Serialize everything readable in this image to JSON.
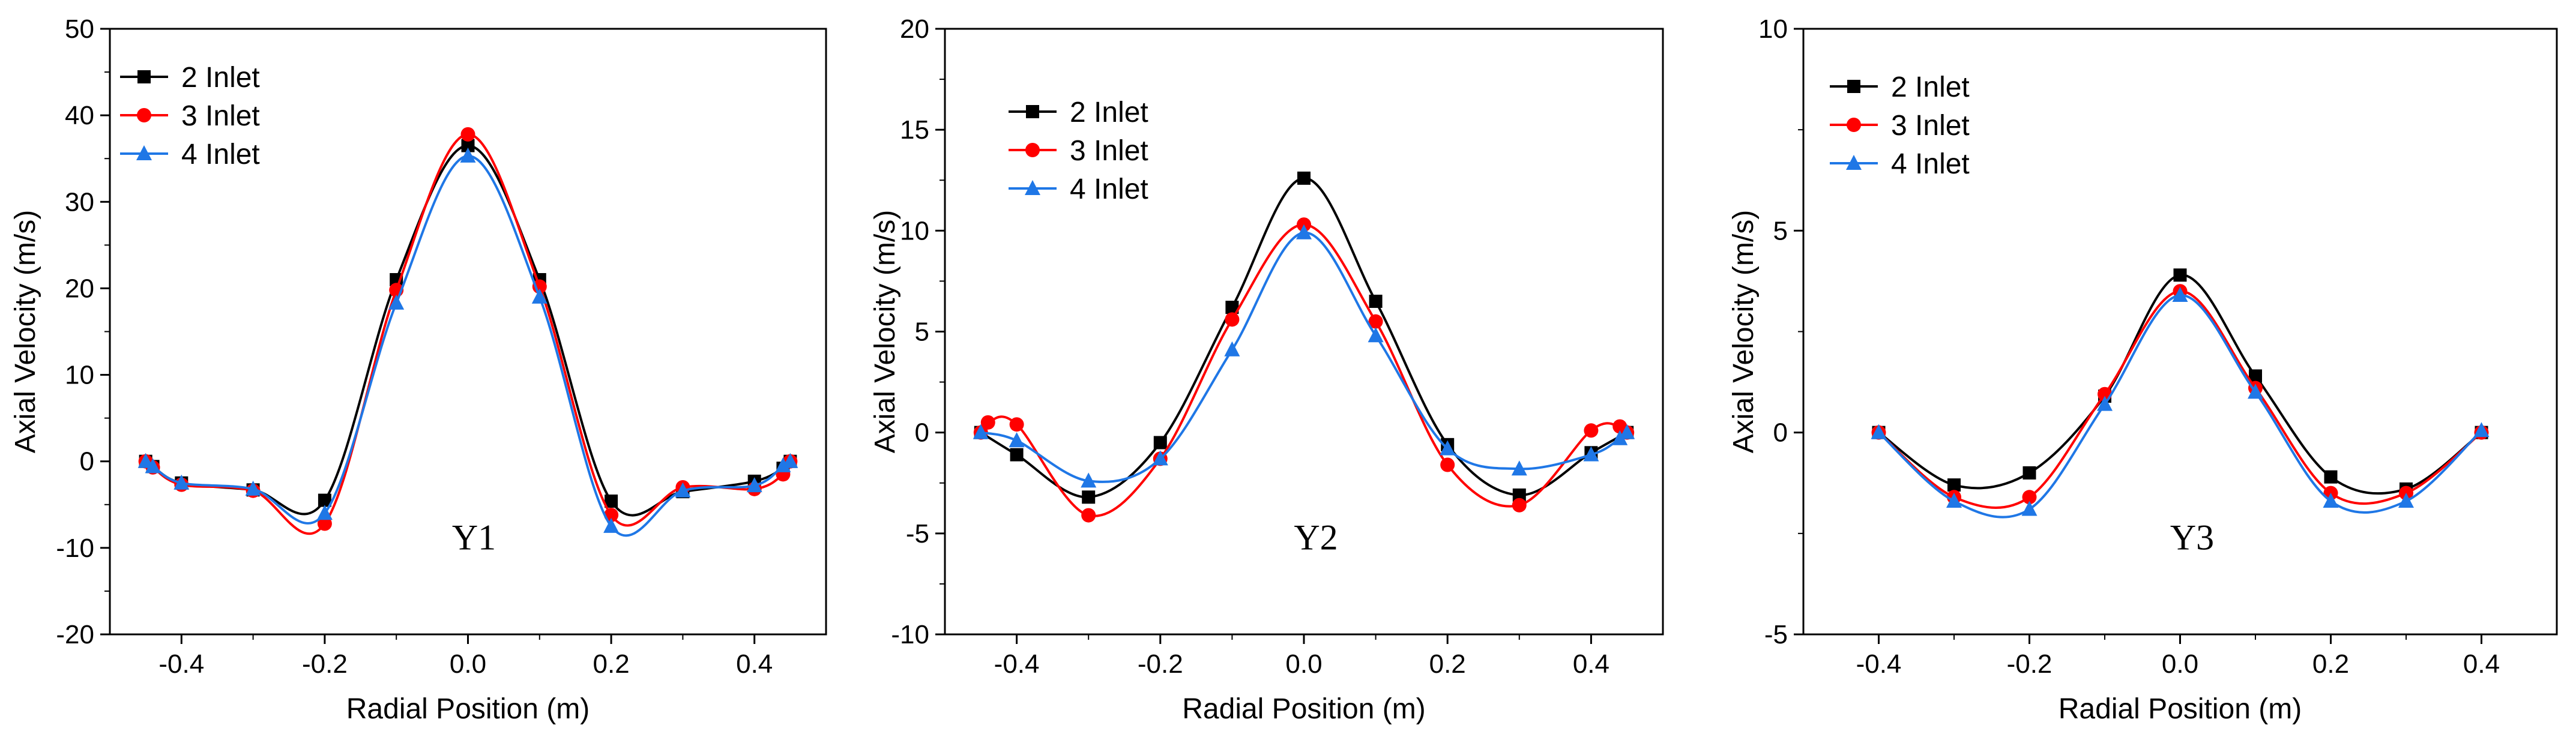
{
  "colors": {
    "2 Inlet": "#000000",
    "3 Inlet": "#ff0000",
    "4 Inlet": "#1f77e6"
  },
  "chart_data": [
    {
      "type": "line",
      "panel_label": "Y1",
      "xlabel": "Radial Position (m)",
      "ylabel": "Axial Velocity (m/s)",
      "xlim": [
        -0.5,
        0.5
      ],
      "ylim": [
        -20,
        50
      ],
      "xticks": [
        -0.4,
        -0.2,
        0.0,
        0.2,
        0.4
      ],
      "xtick_labels": [
        "-0.4",
        "-0.2",
        "0.0",
        "0.2",
        "0.4"
      ],
      "yticks": [
        -20,
        -10,
        0,
        10,
        20,
        30,
        40,
        50
      ],
      "ytick_labels": [
        "-20",
        "-10",
        "0",
        "10",
        "20",
        "30",
        "40",
        "50"
      ],
      "legend": "top-left",
      "series": [
        {
          "name": "2 Inlet",
          "marker": "square",
          "x": [
            -0.45,
            -0.44,
            -0.4,
            -0.3,
            -0.2,
            -0.1,
            0.0,
            0.1,
            0.2,
            0.3,
            0.4,
            0.44,
            0.45
          ],
          "y": [
            0.0,
            -0.6,
            -2.5,
            -3.3,
            -4.5,
            21.0,
            36.5,
            21.0,
            -4.6,
            -3.5,
            -2.3,
            -0.8,
            0.0
          ]
        },
        {
          "name": "3 Inlet",
          "marker": "circle",
          "x": [
            -0.45,
            -0.44,
            -0.4,
            -0.3,
            -0.2,
            -0.1,
            0.0,
            0.1,
            0.2,
            0.3,
            0.4,
            0.44,
            0.45
          ],
          "y": [
            0.0,
            -0.7,
            -2.7,
            -3.4,
            -7.2,
            19.8,
            37.8,
            20.2,
            -6.2,
            -3.0,
            -3.2,
            -1.5,
            0.0
          ]
        },
        {
          "name": "4 Inlet",
          "marker": "triangle",
          "x": [
            -0.45,
            -0.44,
            -0.4,
            -0.3,
            -0.2,
            -0.1,
            0.0,
            0.1,
            0.2,
            0.3,
            0.4,
            0.44,
            0.45
          ],
          "y": [
            0.0,
            -0.6,
            -2.5,
            -3.2,
            -6.0,
            18.3,
            35.3,
            19.0,
            -7.5,
            -3.4,
            -2.8,
            -0.5,
            0.0
          ]
        }
      ]
    },
    {
      "type": "line",
      "panel_label": "Y2",
      "xlabel": "Radial Position (m)",
      "ylabel": "Axial Velocity (m/s)",
      "xlim": [
        -0.5,
        0.5
      ],
      "ylim": [
        -10,
        20
      ],
      "xticks": [
        -0.4,
        -0.2,
        0.0,
        0.2,
        0.4
      ],
      "xtick_labels": [
        "-0.4",
        "-0.2",
        "0.0",
        "0.2",
        "0.4"
      ],
      "yticks": [
        -10,
        -5,
        0,
        5,
        10,
        15,
        20
      ],
      "ytick_labels": [
        "-10",
        "-5",
        "0",
        "5",
        "10",
        "15",
        "20"
      ],
      "legend": "top-left",
      "series": [
        {
          "name": "2 Inlet",
          "marker": "square",
          "x": [
            -0.45,
            -0.4,
            -0.3,
            -0.2,
            -0.1,
            0.0,
            0.1,
            0.2,
            0.3,
            0.4,
            0.45
          ],
          "y": [
            0.0,
            -1.1,
            -3.2,
            -0.5,
            6.2,
            12.6,
            6.5,
            -0.6,
            -3.1,
            -1.0,
            0.0
          ]
        },
        {
          "name": "3 Inlet",
          "marker": "circle",
          "x": [
            -0.45,
            -0.44,
            -0.4,
            -0.3,
            -0.2,
            -0.1,
            0.0,
            0.1,
            0.2,
            0.3,
            0.4,
            0.44,
            0.45
          ],
          "y": [
            0.0,
            0.5,
            0.4,
            -4.1,
            -1.3,
            5.6,
            10.3,
            5.5,
            -1.6,
            -3.6,
            0.1,
            0.3,
            0.0
          ]
        },
        {
          "name": "4 Inlet",
          "marker": "triangle",
          "x": [
            -0.45,
            -0.4,
            -0.3,
            -0.2,
            -0.1,
            0.0,
            0.1,
            0.2,
            0.3,
            0.4,
            0.44,
            0.45
          ],
          "y": [
            0.0,
            -0.4,
            -2.4,
            -1.3,
            4.1,
            9.9,
            4.8,
            -0.8,
            -1.8,
            -1.1,
            -0.3,
            0.0
          ]
        }
      ]
    },
    {
      "type": "line",
      "panel_label": "Y3",
      "xlabel": "Radial Position (m)",
      "ylabel": "Axial Velocity (m/s)",
      "xlim": [
        -0.5,
        0.5
      ],
      "ylim": [
        -5,
        10
      ],
      "xticks": [
        -0.4,
        -0.2,
        0.0,
        0.2,
        0.4
      ],
      "xtick_labels": [
        "-0.4",
        "-0.2",
        "0.0",
        "0.2",
        "0.4"
      ],
      "yticks": [
        -5,
        0,
        5,
        10
      ],
      "ytick_labels": [
        "-5",
        "0",
        "5",
        "10"
      ],
      "legend": "top-left",
      "series": [
        {
          "name": "2 Inlet",
          "marker": "square",
          "x": [
            -0.4,
            -0.3,
            -0.2,
            -0.1,
            0.0,
            0.1,
            0.2,
            0.3,
            0.4
          ],
          "y": [
            0.0,
            -1.3,
            -1.0,
            0.9,
            3.9,
            1.4,
            -1.1,
            -1.4,
            0.0
          ]
        },
        {
          "name": "3 Inlet",
          "marker": "circle",
          "x": [
            -0.4,
            -0.3,
            -0.2,
            -0.1,
            0.0,
            0.1,
            0.2,
            0.3,
            0.4
          ],
          "y": [
            0.0,
            -1.6,
            -1.6,
            0.95,
            3.5,
            1.1,
            -1.5,
            -1.5,
            0.0
          ]
        },
        {
          "name": "4 Inlet",
          "marker": "triangle",
          "x": [
            -0.4,
            -0.3,
            -0.2,
            -0.1,
            0.0,
            0.1,
            0.2,
            0.3,
            0.4
          ],
          "y": [
            0.0,
            -1.7,
            -1.9,
            0.7,
            3.4,
            1.0,
            -1.7,
            -1.7,
            0.05
          ]
        }
      ]
    }
  ]
}
